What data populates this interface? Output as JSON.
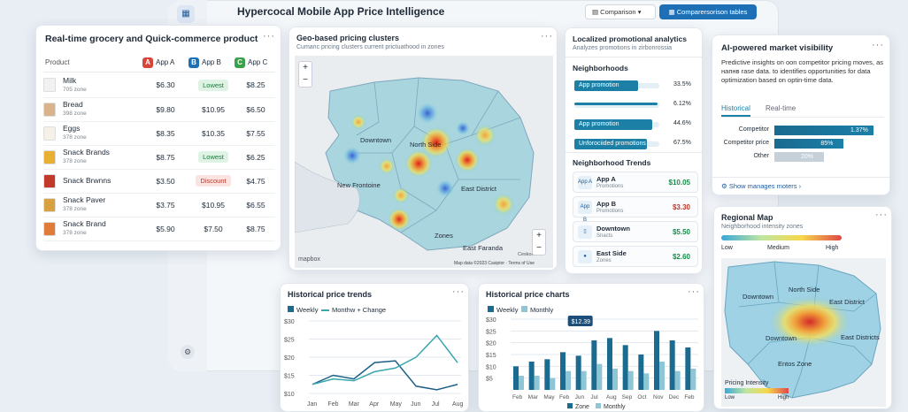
{
  "header": {
    "title": "Hypercocal Mobile App Price Intelligence",
    "comparison_label": "Comparison",
    "compare_btn": "Comparersorison tables"
  },
  "grocery": {
    "title": "Real-time grocery and Quick-commerce product",
    "col_product": "Product",
    "app_a": "App A",
    "app_b": "App B",
    "app_c": "App C",
    "rows": [
      {
        "name": "Milk",
        "zone": "705 zone",
        "a": "$6.30",
        "b": "Lowest",
        "c": "$8.25",
        "btype": "lowest"
      },
      {
        "name": "Bread",
        "zone": "398 zone",
        "a": "$9.80",
        "b": "$10.95",
        "c": "$6.50",
        "btype": "plain"
      },
      {
        "name": "Eggs",
        "zone": "378 zone",
        "a": "$8.35",
        "b": "$10.35",
        "c": "$7.55",
        "btype": "plain"
      },
      {
        "name": "Snack Brands",
        "zone": "378 zone",
        "a": "$8.75",
        "b": "Lowest",
        "c": "$6.25",
        "btype": "lowest"
      },
      {
        "name": "Snack Brwnns",
        "zone": "",
        "a": "$3.50",
        "b": "Discount",
        "c": "$4.75",
        "btype": "discount"
      },
      {
        "name": "Snack Paver",
        "zone": "378 zone",
        "a": "$3.75",
        "b": "$10.95",
        "c": "$6.55",
        "btype": "plain"
      },
      {
        "name": "Snack Brand",
        "zone": "378 zone",
        "a": "$5.90",
        "b": "$7.50",
        "c": "$8.75",
        "btype": "plain"
      }
    ]
  },
  "geo": {
    "title": "Geo-based pricing clusters",
    "subtitle": "Cumanc pricing clusters current prictuathood in zones",
    "zoom_in": "+",
    "zoom_out": "−",
    "labels": {
      "downtown": "Downtown",
      "north": "North Side",
      "frontoine": "New Frontoine",
      "east": "East District",
      "zones": "Zones",
      "faranda": "East Faranda",
      "ceskore": "Ceskore"
    },
    "logo": "mapbox",
    "attrib": "Map data ©2023 Casiptor · Terms of Use"
  },
  "promo": {
    "title": "Localized promotional analytics",
    "subtitle": "Analyzes promotions in zirbonrossia",
    "neigh": "Neighborhoods",
    "bars": [
      {
        "label": "App promotion",
        "pct": "33.5%",
        "v": 0.55
      },
      {
        "label": "",
        "pct": "6.12%",
        "v": 0.55
      },
      {
        "label": "App promotion",
        "pct": "44.6%",
        "v": 0.68
      },
      {
        "label": "Unforociided promotions",
        "pct": "67.5%",
        "v": 0.63
      }
    ],
    "trends_title": "Neighborhood Trends",
    "trends": [
      {
        "ico": "App A",
        "name": "App A",
        "sub": "Promotions",
        "val": "$10.05",
        "color": "#1a8c4a"
      },
      {
        "ico": "App B",
        "name": "App B",
        "sub": "Promotions",
        "val": "$3.30",
        "color": "#c0392b"
      },
      {
        "ico": "▯",
        "name": "Downtown",
        "sub": "Snacts",
        "val": "$5.50",
        "color": "#1a8c4a"
      },
      {
        "ico": "●",
        "name": "East Side",
        "sub": "Zones",
        "val": "$2.60",
        "color": "#1a8c4a"
      }
    ]
  },
  "ai": {
    "title": "AI-powered market visibility",
    "desc": "Predictive insights on oon competitor pricing moves, as нaпнв rase data. to identifies opportunities for data optimization based on optin-time data.",
    "tab_hist": "Historical",
    "tab_rt": "Real-time",
    "bars": [
      {
        "label": "Competitor",
        "val": "1.37%",
        "v": 1.0,
        "color": "#1a7fa8"
      },
      {
        "label": "Competitor price",
        "val": "85%",
        "v": 0.7,
        "color": "#1a7fa8"
      },
      {
        "label": "Other",
        "val": "20%",
        "v": 0.5,
        "color": "#c6d0d8"
      }
    ],
    "link": "Show manages moters"
  },
  "regional": {
    "title": "Regional Map",
    "subtitle": "Neighborhood intensity zones",
    "low": "Low",
    "medium": "Medium",
    "high": "High",
    "labels": {
      "downtown": "Downtown",
      "north": "North Side",
      "east": "East District",
      "downtown2": "Downtown",
      "east2": "East Districts",
      "entos": "Entos Zone"
    },
    "legend_title": "Pricing Intensity",
    "leg_low": "Low",
    "leg_high": "High"
  },
  "trends": {
    "title": "Historical price trends",
    "leg1": "Weekly",
    "leg2": "Monthw + Change",
    "yticks": [
      "$30",
      "$25",
      "$20",
      "$15",
      "$10"
    ],
    "months": [
      "Jan",
      "Feb",
      "Mar",
      "Apr",
      "May",
      "Jun",
      "Jul",
      "Aug"
    ]
  },
  "hcharts": {
    "title": "Historical price charts",
    "leg1": "Weekly",
    "leg2": "Monthly",
    "yticks": [
      "$30",
      "$25",
      "$20",
      "$15",
      "$10",
      "$5"
    ],
    "months": [
      "Feb",
      "Mar",
      "May",
      "Feb",
      "Jun",
      "Jul",
      "Aug",
      "Sep",
      "Oct",
      "Nov",
      "Dec",
      "Feb"
    ],
    "tooltip": "$12.39",
    "foot1": "Zone",
    "foot2": "Monthly"
  },
  "chart_data": [
    {
      "type": "line",
      "title": "Historical price trends",
      "x": [
        "Jan",
        "Feb",
        "Mar",
        "Apr",
        "May",
        "Jun",
        "Jul",
        "Aug"
      ],
      "ylim": [
        10,
        30
      ],
      "series": [
        {
          "name": "Weekly",
          "values": [
            12.5,
            15,
            14,
            18.5,
            19,
            12,
            11,
            12.5
          ]
        },
        {
          "name": "Monthw + Change",
          "values": [
            12.5,
            14,
            13.5,
            16,
            17,
            20,
            26,
            18.5
          ]
        }
      ]
    },
    {
      "type": "bar",
      "title": "Historical price charts",
      "categories": [
        "Feb",
        "Mar",
        "May",
        "Feb",
        "Jun",
        "Jul",
        "Aug",
        "Sep",
        "Oct",
        "Nov",
        "Dec",
        "Feb"
      ],
      "ylim": [
        0,
        30
      ],
      "series": [
        {
          "name": "Weekly",
          "values": [
            10,
            12,
            13,
            16,
            14.5,
            21,
            22,
            19,
            15,
            25,
            21,
            18
          ]
        },
        {
          "name": "Monthly",
          "values": [
            6,
            6,
            5,
            8,
            8,
            11,
            9,
            8,
            7,
            12,
            8,
            9
          ]
        }
      ]
    }
  ]
}
